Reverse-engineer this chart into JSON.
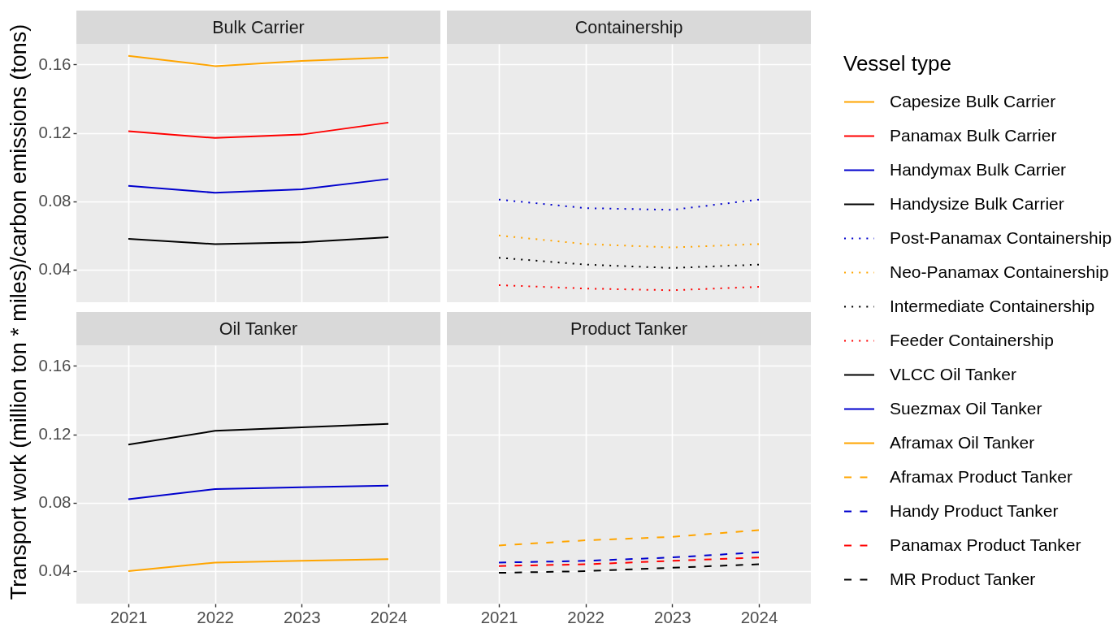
{
  "chart_data": [
    {
      "type": "line",
      "title": "Bulk Carrier",
      "ylabel": "Transport work (million ton * miles)/carbon emissions (tons)",
      "legend_title": "Vessel type",
      "legend": "right",
      "categories": [
        "2021",
        "2022",
        "2023",
        "2024"
      ],
      "ylim": [
        0.021,
        0.172
      ],
      "yticks": [
        0.04,
        0.08,
        0.12,
        0.16
      ],
      "grid": true,
      "tick_labels": "y",
      "line_style": "solid",
      "series": [
        {
          "name": "Capesize Bulk Carrier",
          "color": "#ffa500",
          "values": [
            0.165,
            0.159,
            0.162,
            0.164
          ]
        },
        {
          "name": "Panamax Bulk Carrier",
          "color": "#ff0000",
          "values": [
            0.121,
            0.117,
            0.119,
            0.126
          ]
        },
        {
          "name": "Handymax Bulk Carrier",
          "color": "#0000cd",
          "values": [
            0.089,
            0.085,
            0.087,
            0.093
          ]
        },
        {
          "name": "Handysize Bulk Carrier",
          "color": "#000000",
          "values": [
            0.058,
            0.055,
            0.056,
            0.059
          ]
        }
      ]
    },
    {
      "type": "line",
      "title": "Containership",
      "legend": "right",
      "categories": [
        "2021",
        "2022",
        "2023",
        "2024"
      ],
      "ylim": [
        0.021,
        0.172
      ],
      "yticks": [
        0.04,
        0.08,
        0.12,
        0.16
      ],
      "grid": true,
      "tick_labels": false,
      "line_style": "dotted",
      "series": [
        {
          "name": "Post-Panamax Containership",
          "color": "#0000cd",
          "values": [
            0.081,
            0.076,
            0.075,
            0.081
          ]
        },
        {
          "name": "Neo-Panamax Containership",
          "color": "#ffa500",
          "values": [
            0.06,
            0.055,
            0.053,
            0.055
          ]
        },
        {
          "name": "Intermediate Containership",
          "color": "#000000",
          "values": [
            0.047,
            0.043,
            0.041,
            0.043
          ]
        },
        {
          "name": "Feeder Containership",
          "color": "#ff0000",
          "values": [
            0.031,
            0.029,
            0.028,
            0.03
          ]
        }
      ]
    },
    {
      "type": "line",
      "title": "Oil Tanker",
      "legend": "right",
      "categories": [
        "2021",
        "2022",
        "2023",
        "2024"
      ],
      "ylim": [
        0.021,
        0.172
      ],
      "yticks": [
        0.04,
        0.08,
        0.12,
        0.16
      ],
      "grid": true,
      "line_style": "solid",
      "series": [
        {
          "name": "VLCC Oil Tanker",
          "color": "#000000",
          "values": [
            0.114,
            0.122,
            0.124,
            0.126
          ]
        },
        {
          "name": "Suezmax Oil Tanker",
          "color": "#0000cd",
          "values": [
            0.082,
            0.088,
            0.089,
            0.09
          ]
        },
        {
          "name": "Aframax Oil Tanker",
          "color": "#ffa500",
          "values": [
            0.04,
            0.045,
            0.046,
            0.047
          ]
        }
      ]
    },
    {
      "type": "line",
      "title": "Product Tanker",
      "legend": "right",
      "categories": [
        "2021",
        "2022",
        "2023",
        "2024"
      ],
      "ylim": [
        0.021,
        0.172
      ],
      "yticks": [
        0.04,
        0.08,
        0.12,
        0.16
      ],
      "grid": true,
      "tick_labels": "x",
      "line_style": "dashed",
      "series": [
        {
          "name": "Aframax Product Tanker",
          "color": "#ffa500",
          "values": [
            0.055,
            0.058,
            0.06,
            0.064
          ]
        },
        {
          "name": "Handy Product Tanker",
          "color": "#0000cd",
          "values": [
            0.045,
            0.046,
            0.048,
            0.051
          ]
        },
        {
          "name": "Panamax Product Tanker",
          "color": "#ff0000",
          "values": [
            0.043,
            0.044,
            0.046,
            0.048
          ]
        },
        {
          "name": "MR Product Tanker",
          "color": "#000000",
          "values": [
            0.039,
            0.04,
            0.042,
            0.044
          ]
        }
      ]
    }
  ]
}
